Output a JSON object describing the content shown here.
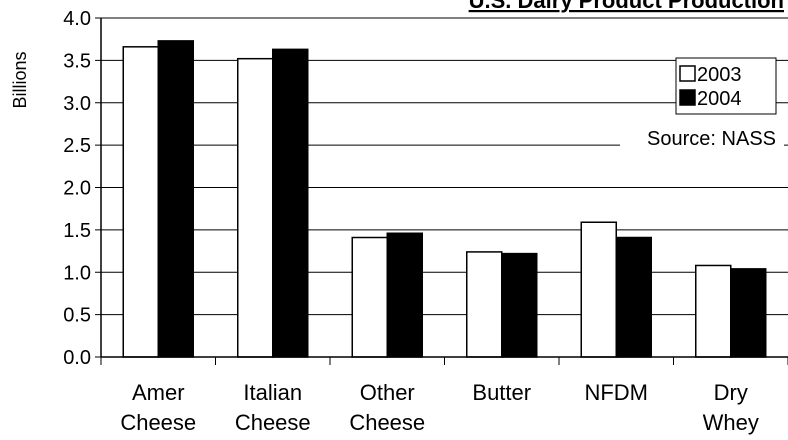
{
  "chart_data": {
    "type": "bar",
    "title": "U.S. Dairy Product Production",
    "ylabel": "Billions",
    "xlabel": "",
    "categories": [
      [
        "Amer",
        "Cheese"
      ],
      [
        "Italian",
        "Cheese"
      ],
      [
        "Other",
        "Cheese"
      ],
      [
        "Butter"
      ],
      [
        "NFDM"
      ],
      [
        "Dry",
        "Whey"
      ]
    ],
    "series": [
      {
        "name": "2003",
        "color": "#ffffff",
        "values": [
          3.66,
          3.52,
          1.41,
          1.24,
          1.59,
          1.08
        ]
      },
      {
        "name": "2004",
        "color": "#000000",
        "values": [
          3.73,
          3.63,
          1.46,
          1.22,
          1.41,
          1.04
        ]
      }
    ],
    "ylim": [
      0,
      4.0
    ],
    "yticks": [
      "0.0",
      "0.5",
      "1.0",
      "1.5",
      "2.0",
      "2.5",
      "3.0",
      "3.5",
      "4.0"
    ],
    "grid": true,
    "legend_position": "top-right",
    "source_note": "Source: NASS"
  }
}
